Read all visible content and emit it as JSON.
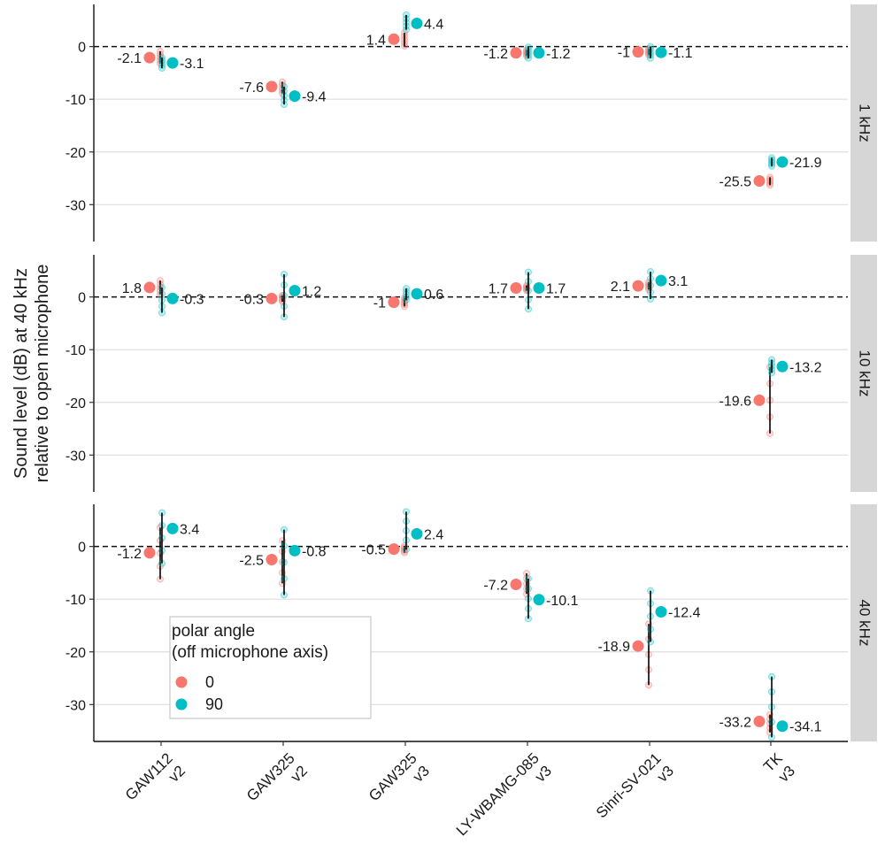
{
  "chart_data": {
    "type": "scatter",
    "title": "",
    "ylabel": "Sound level (dB) at 40 kHz\nrelative to open microphone",
    "xlabel": "",
    "ylim": [
      -37,
      8
    ],
    "yticks": [
      0,
      -10,
      -20,
      -30
    ],
    "grid": "horizontal",
    "reference_line": 0,
    "categories": [
      "GAW112\nv2",
      "GAW325\nv2",
      "GAW325\nv3",
      "LY-WBAMG-085\nv3",
      "Sinri-SV-021\nv3",
      "TK\nv3"
    ],
    "legend": {
      "title": "polar angle\n(off microphone axis)",
      "position": "bottom-left",
      "entries": [
        {
          "label": "0",
          "color": "#F8766D"
        },
        {
          "label": "90",
          "color": "#00BFC4"
        }
      ]
    },
    "facets": [
      {
        "label": "1 kHz",
        "series": [
          {
            "name": "0",
            "color": "#F8766D",
            "values": [
              -2.1,
              -7.6,
              1.4,
              -1.2,
              -1,
              -25.5
            ],
            "labels": [
              "-2.1",
              "-7.6",
              "1.4",
              "-1.2",
              "-1",
              "-25.5"
            ],
            "ranges": [
              [
                -3.2,
                -0.9
              ],
              [
                -8.9,
                -6.7
              ],
              [
                0.1,
                2.6
              ],
              [
                -1.8,
                -0.6
              ],
              [
                -1.6,
                -0.4
              ],
              [
                -26.3,
                -24.8
              ]
            ]
          },
          {
            "name": "90",
            "color": "#00BFC4",
            "values": [
              -3.1,
              -9.4,
              4.4,
              -1.2,
              -1.1,
              -21.9
            ],
            "labels": [
              "-3.1",
              "-9.4",
              "4.4",
              "-1.2",
              "-1.1",
              "-21.9"
            ],
            "ranges": [
              [
                -4.1,
                -2.1
              ],
              [
                -11.0,
                -7.6
              ],
              [
                3.2,
                6.0
              ],
              [
                -2.2,
                -0.1
              ],
              [
                -2.2,
                0.0
              ],
              [
                -22.7,
                -21.1
              ]
            ]
          }
        ]
      },
      {
        "label": "10 kHz",
        "series": [
          {
            "name": "0",
            "color": "#F8766D",
            "values": [
              1.8,
              -0.3,
              -1,
              1.7,
              2.1,
              -19.6
            ],
            "labels": [
              "1.8",
              "-0.3",
              "-1",
              "1.7",
              "2.1",
              "-19.6"
            ],
            "ranges": [
              [
                0.5,
                3.1
              ],
              [
                -0.9,
                0.3
              ],
              [
                -1.8,
                -0.2
              ],
              [
                1.2,
                2.2
              ],
              [
                1.4,
                2.8
              ],
              [
                -25.9,
                -13.3
              ]
            ]
          },
          {
            "name": "90",
            "color": "#00BFC4",
            "values": [
              -0.3,
              1.2,
              0.6,
              1.7,
              3.1,
              -13.2
            ],
            "labels": [
              "-0.3",
              "1.2",
              "0.6",
              "1.7",
              "3.1",
              "-13.2"
            ],
            "ranges": [
              [
                -3.0,
                1.8
              ],
              [
                -3.8,
                4.3
              ],
              [
                -0.6,
                1.6
              ],
              [
                -2.3,
                4.7
              ],
              [
                -0.4,
                4.8
              ],
              [
                -14.4,
                -11.9
              ]
            ]
          }
        ]
      },
      {
        "label": "40 kHz",
        "series": [
          {
            "name": "0",
            "color": "#F8766D",
            "values": [
              -1.2,
              -2.5,
              -0.5,
              -7.2,
              -18.9,
              -33.2
            ],
            "labels": [
              "-1.2",
              "-2.5",
              "-0.5",
              "-7.2",
              "-18.9",
              "-33.2"
            ],
            "ranges": [
              [
                -6.2,
                3.6
              ],
              [
                -7.0,
                1.1
              ],
              [
                -1.2,
                0.1
              ],
              [
                -9.0,
                -5.1
              ],
              [
                -26.3,
                -14.7
              ],
              [
                -35.3,
                -31.9
              ]
            ]
          },
          {
            "name": "90",
            "color": "#00BFC4",
            "values": [
              3.4,
              -0.8,
              2.4,
              -10.1,
              -12.4,
              -34.1
            ],
            "labels": [
              "3.4",
              "-0.8",
              "2.4",
              "-10.1",
              "-12.4",
              "-34.1"
            ],
            "ranges": [
              [
                -3.2,
                6.4
              ],
              [
                -9.2,
                3.2
              ],
              [
                -0.6,
                6.6
              ],
              [
                -13.7,
                -6.1
              ],
              [
                -18.1,
                -8.4
              ],
              [
                -36.2,
                -24.7
              ]
            ]
          }
        ]
      }
    ]
  }
}
